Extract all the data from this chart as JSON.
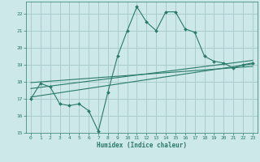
{
  "title": "",
  "xlabel": "Humidex (Indice chaleur)",
  "ylabel": "",
  "background_color": "#cce8e8",
  "grid_color": "#aacccc",
  "line_color": "#2a7a6a",
  "xlim": [
    -0.5,
    23.5
  ],
  "ylim": [
    15,
    22.7
  ],
  "yticks": [
    15,
    16,
    17,
    18,
    19,
    20,
    21,
    22
  ],
  "xticks": [
    0,
    1,
    2,
    3,
    4,
    5,
    6,
    7,
    8,
    9,
    10,
    11,
    12,
    13,
    14,
    15,
    16,
    17,
    18,
    19,
    20,
    21,
    22,
    23
  ],
  "line1_x": [
    0,
    1,
    2,
    3,
    4,
    5,
    6,
    7,
    8,
    9,
    10,
    11,
    12,
    13,
    14,
    15,
    16,
    17,
    18,
    19,
    20,
    21,
    22,
    23
  ],
  "line1_y": [
    17.0,
    17.9,
    17.7,
    16.7,
    16.6,
    16.7,
    16.3,
    15.1,
    17.4,
    19.5,
    21.0,
    22.4,
    21.5,
    21.0,
    22.1,
    22.1,
    21.1,
    20.9,
    19.5,
    19.2,
    19.1,
    18.8,
    19.0,
    19.1
  ],
  "line2_x": [
    0,
    23
  ],
  "line2_y": [
    17.1,
    19.05
  ],
  "line3_x": [
    0,
    23
  ],
  "line3_y": [
    17.6,
    19.25
  ],
  "line4_x": [
    0,
    23
  ],
  "line4_y": [
    17.95,
    18.9
  ]
}
